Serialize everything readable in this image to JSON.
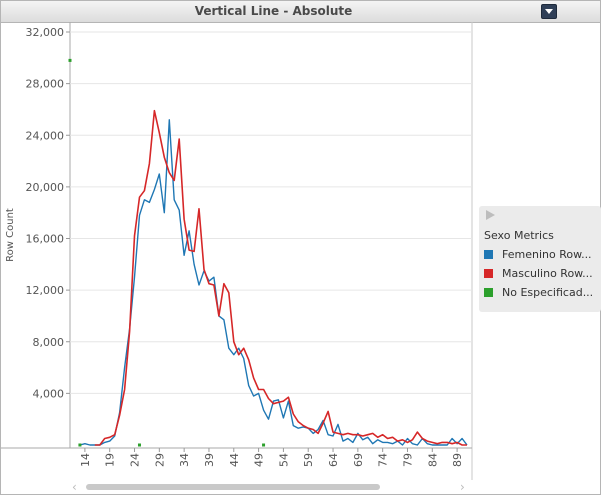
{
  "window": {
    "title": "Vertical Line - Absolute",
    "menu_icon": "dropdown-arrow-icon"
  },
  "legend": {
    "title": "Sexo Metrics",
    "items": [
      {
        "label": "Femenino Row...",
        "color": "#1f77b4"
      },
      {
        "label": "Masculino Row...",
        "color": "#d62728"
      },
      {
        "label": "No Especificad...",
        "color": "#2ca02c"
      }
    ]
  },
  "scrollbar": {
    "left_icon": "chevron-left-icon",
    "right_icon": "chevron-right-icon"
  },
  "chart_data": {
    "type": "line",
    "title": "Vertical Line - Absolute",
    "ylabel": "Row Count",
    "xlabel": "",
    "ylim": [
      0,
      32000
    ],
    "y_ticks": [
      "32,000",
      "28,000",
      "24,000",
      "20,000",
      "16,000",
      "12,000",
      "8,000",
      "4,000"
    ],
    "y_tick_values": [
      32000,
      28000,
      24000,
      20000,
      16000,
      12000,
      8000,
      4000
    ],
    "x_range": [
      11,
      92
    ],
    "x_ticks": [
      "14",
      "19",
      "24",
      "29",
      "34",
      "39",
      "44",
      "49",
      "54",
      "59",
      "64",
      "69",
      "74",
      "79",
      "84",
      "89"
    ],
    "x_tick_values": [
      14,
      19,
      24,
      29,
      34,
      39,
      44,
      49,
      54,
      59,
      64,
      69,
      74,
      79,
      84,
      89
    ],
    "grid": true,
    "series": [
      {
        "name": "Femenino Row...",
        "color": "#1f77b4",
        "x": [
          13,
          14,
          15,
          16,
          17,
          18,
          19,
          20,
          21,
          22,
          23,
          24,
          25,
          26,
          27,
          28,
          29,
          30,
          31,
          32,
          33,
          34,
          35,
          36,
          37,
          38,
          39,
          40,
          41,
          42,
          43,
          44,
          45,
          46,
          47,
          48,
          49,
          50,
          51,
          52,
          53,
          54,
          55,
          56,
          57,
          58,
          59,
          60,
          61,
          62,
          63,
          64,
          65,
          66,
          67,
          68,
          69,
          70,
          71,
          72,
          73,
          74,
          75,
          76,
          77,
          78,
          79,
          80,
          81,
          82,
          83,
          84,
          85,
          86,
          87,
          88,
          89,
          90,
          91
        ],
        "y": [
          0,
          100,
          0,
          0,
          0,
          200,
          300,
          700,
          2500,
          6000,
          9000,
          13000,
          17800,
          19000,
          18800,
          19800,
          21000,
          18000,
          25200,
          19000,
          18200,
          14700,
          16600,
          14000,
          12400,
          13500,
          12700,
          13000,
          10000,
          9700,
          7500,
          7000,
          7500,
          6700,
          4600,
          3800,
          4000,
          2700,
          2000,
          3400,
          3500,
          2100,
          3400,
          1500,
          1300,
          1400,
          1300,
          900,
          1200,
          1900,
          800,
          700,
          1600,
          300,
          500,
          200,
          900,
          400,
          600,
          100,
          400,
          200,
          200,
          100,
          300,
          0,
          500,
          100,
          0,
          500,
          100,
          0,
          0,
          0,
          0,
          500,
          100,
          500,
          0
        ]
      },
      {
        "name": "Masculino Row...",
        "color": "#d62728",
        "x": [
          16,
          17,
          18,
          19,
          20,
          21,
          22,
          23,
          24,
          25,
          26,
          27,
          28,
          29,
          30,
          31,
          32,
          33,
          34,
          35,
          36,
          37,
          38,
          39,
          40,
          41,
          42,
          43,
          44,
          45,
          46,
          47,
          48,
          49,
          50,
          51,
          52,
          53,
          54,
          55,
          56,
          57,
          58,
          59,
          60,
          61,
          62,
          63,
          64,
          65,
          66,
          67,
          68,
          69,
          70,
          71,
          72,
          73,
          74,
          75,
          76,
          77,
          78,
          79,
          80,
          81,
          82,
          83,
          84,
          85,
          86,
          87,
          88,
          89,
          90,
          91
        ],
        "y": [
          0,
          0,
          500,
          600,
          800,
          2300,
          4300,
          8800,
          16200,
          19200,
          19700,
          21800,
          25900,
          24200,
          22300,
          21100,
          20500,
          23700,
          17500,
          15100,
          15000,
          18300,
          13600,
          12500,
          12400,
          10000,
          12500,
          11800,
          8000,
          7000,
          7500,
          6600,
          5200,
          4300,
          4300,
          3600,
          3200,
          3300,
          3400,
          3700,
          2400,
          1800,
          1500,
          1300,
          1200,
          900,
          1700,
          2600,
          1000,
          900,
          800,
          900,
          800,
          800,
          700,
          800,
          900,
          600,
          800,
          500,
          600,
          300,
          400,
          200,
          400,
          1000,
          500,
          300,
          200,
          100,
          200,
          200,
          100,
          200,
          0,
          0
        ]
      },
      {
        "name": "No Especificad...",
        "color": "#2ca02c",
        "points": [
          [
            11,
            29800
          ],
          [
            13,
            0
          ],
          [
            25,
            0
          ],
          [
            50,
            0
          ]
        ]
      }
    ]
  }
}
